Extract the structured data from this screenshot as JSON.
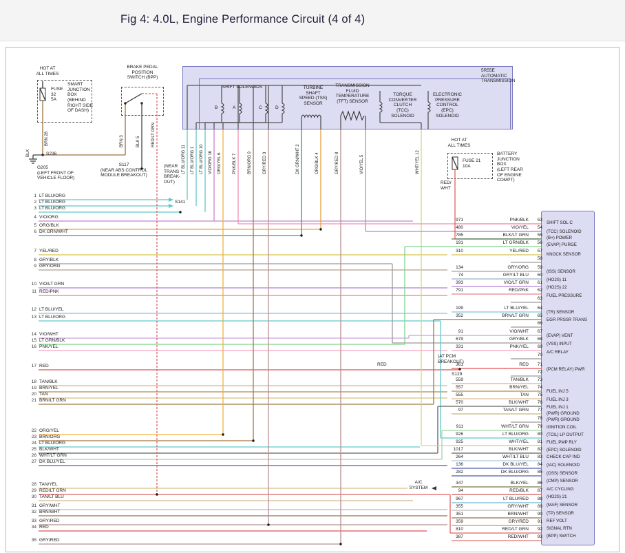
{
  "header": {
    "title": "Fig 4: 4.0L, Engine Performance Circuit (4 of 4)"
  },
  "labels": {
    "hot_left": "HOT AT\nALL TIMES",
    "fuse32": "FUSE\n32\n5A",
    "sjb": "SMART\nJUNCTION\nBOX\n(BEHIND\nRIGHT SIDE\nOF DASH)",
    "bpp": "BRAKE PEDAL\nPOSITION\nSWITCH (BPP)",
    "brn_feed": "BRN",
    "brn_feed_pin": "28",
    "blk_ground": "BLK",
    "s236": "S236",
    "g205": "G205\n(LEFT FRONT OF\nVEHICLE FLOOR)",
    "s117": "S117\n(NEAR ABS CONTROL\nMODULE BREAKOUT)",
    "near_trans": "(NEAR\nTRANS\nBREAK-\nOUT)",
    "s141": "S141",
    "shift_solenoids": "SHIFT SOLENOIDS",
    "tss": "TURBINE\nSHAFT\nSPEED (TSS)\nSENSOR",
    "tft": "TRANSMISSION\nFLUID\nTEMPERATURE\n(TFT) SENSOR",
    "tcc": "TORQUE\nCONVERTER\nCLUTCH\n(TCC)\nSOLENOID",
    "epc": "ELECTRONIC\nPRESSURE\nCONTROL\n(EPC)\nSOLENOID",
    "trans_title": "5R55E\nAUTOMATIC\nTRANSMISSION",
    "hot_right": "HOT AT\nALL TIMES",
    "fuse21": "FUSE 21\n10A",
    "bjb": "BATTERY\nJUNCTION\nBOX\n(LEFT REAR\nOF ENGINE\nCOMPT)",
    "red_wht": "RED/\nWHT",
    "at_pcm": "(AT PCM\nBREAKOUT)",
    "s129": "S129",
    "red_mid": "RED",
    "ac_system": "A/C\nSYSTEM"
  },
  "solenoid_letters": [
    "B",
    "A",
    "C",
    "D"
  ],
  "bpp_drops": [
    {
      "label": "BRN",
      "pin": "3",
      "hex": "#9a6f3a"
    },
    {
      "label": "BLK",
      "pin": "5",
      "hex": "#555555"
    },
    {
      "label": "RED/LT GRN",
      "pin": "",
      "hex": "#e06060"
    }
  ],
  "trans_drops": [
    {
      "label": "LT BLU/ORG",
      "pin": "11",
      "hex": "#5fc8c8"
    },
    {
      "label": "LT BLU/ORG",
      "pin": "1",
      "hex": "#5fc8c8"
    },
    {
      "label": "LT BLU/ORG",
      "pin": "10",
      "hex": "#5fc8c8"
    },
    {
      "label": "VIO/ORG",
      "pin": "16",
      "hex": "#c97fd4"
    },
    {
      "label": "ORG/YEL",
      "pin": "6",
      "hex": "#f0b040"
    },
    {
      "label": "PNK/BLK",
      "pin": "7",
      "hex": "#f08fb0"
    },
    {
      "label": "BRN/ORG",
      "pin": "9",
      "hex": "#a8763a"
    },
    {
      "label": "GRY/RED",
      "pin": "3",
      "hex": "#b89090"
    },
    {
      "label": "DK GRN/WHT",
      "pin": "2",
      "hex": "#3a9a5c"
    },
    {
      "label": "ORG/BLK",
      "pin": "4",
      "hex": "#e8a23c"
    },
    {
      "label": "GRY/RED",
      "pin": "8",
      "hex": "#b89090"
    },
    {
      "label": "VIO/YEL",
      "pin": "5",
      "hex": "#c080d8"
    },
    {
      "label": "WHT/YEL",
      "pin": "12",
      "hex": "#d8d090"
    }
  ],
  "left_rows": [
    {
      "n": "1",
      "label": "LT BLU/ORG",
      "hex": "#5fc8c8"
    },
    {
      "n": "2",
      "label": "LT BLU/ORG",
      "hex": "#5fc8c8"
    },
    {
      "n": "3",
      "label": "LT BLU/ORG",
      "hex": "#5fc8c8"
    },
    {
      "n": "4",
      "label": "VIO/ORG",
      "hex": "#c97fd4"
    },
    {
      "n": "5",
      "label": "ORG/BLK",
      "hex": "#e8a23c"
    },
    {
      "n": "6",
      "label": "DK GRN/WHT",
      "hex": "#3a9a5c"
    },
    {
      "n": "7",
      "label": "YEL/RED",
      "hex": "#d4c44a"
    },
    {
      "n": "8",
      "label": "GRY/BLK",
      "hex": "#9a9a9a"
    },
    {
      "n": "9",
      "label": "GRY/ORG",
      "hex": "#b0a090"
    },
    {
      "n": "10",
      "label": "VIO/LT GRN",
      "hex": "#b57fd4"
    },
    {
      "n": "11",
      "label": "RED/PNK",
      "hex": "#e8808f"
    },
    {
      "n": "12",
      "label": "LT BLU/YEL",
      "hex": "#7fc4e0"
    },
    {
      "n": "13",
      "label": "LT BLU/ORG",
      "hex": "#5fc8c8"
    },
    {
      "n": "14",
      "label": "VIO/WHT",
      "hex": "#c9a0e0"
    },
    {
      "n": "15",
      "label": "LT GRN/BLK",
      "hex": "#7fd48f"
    },
    {
      "n": "16",
      "label": "PNK/YEL",
      "hex": "#f2a0c0"
    },
    {
      "n": "17",
      "label": "RED",
      "hex": "#e05252"
    },
    {
      "n": "18",
      "label": "TAN/BLK",
      "hex": "#d4b483"
    },
    {
      "n": "19",
      "label": "BRN/YEL",
      "hex": "#b08a4f"
    },
    {
      "n": "20",
      "label": "TAN",
      "hex": "#d8bc8a"
    },
    {
      "n": "21",
      "label": "BRN/LT GRN",
      "hex": "#9a7a45"
    },
    {
      "n": "22",
      "label": "ORG/YEL",
      "hex": "#f0b040"
    },
    {
      "n": "23",
      "label": "BRN/ORG",
      "hex": "#a8763a"
    },
    {
      "n": "24",
      "label": "LT BLU/ORG",
      "hex": "#5fc8c8"
    },
    {
      "n": "25",
      "label": "BLK/WHT",
      "hex": "#606060"
    },
    {
      "n": "26",
      "label": "WHT/LT GRN",
      "hex": "#a0d4a8"
    },
    {
      "n": "27",
      "label": "DK BLU/YEL",
      "hex": "#4a5ab0"
    },
    {
      "n": "28",
      "label": "TAN/YEL",
      "hex": "#d8c080"
    },
    {
      "n": "29",
      "label": "RED/LT GRN",
      "hex": "#e06060"
    },
    {
      "n": "30",
      "label": "TAN/LT BLU",
      "hex": "#d0b890"
    },
    {
      "n": "31",
      "label": "GRY/WHT",
      "hex": "#b8b8b8"
    },
    {
      "n": "32",
      "label": "BRN/WHT",
      "hex": "#9a6f4a"
    },
    {
      "n": "33",
      "label": "GRY/RED",
      "hex": "#b89090"
    },
    {
      "n": "34",
      "label": "RED",
      "hex": "#e05252"
    },
    {
      "n": "35",
      "label": "GRY/RED",
      "hex": "#b89090"
    }
  ],
  "pcm_rows": [
    {
      "circuit": "971",
      "color": "PNK/BLK",
      "pin": "53",
      "hex": "#f08fb0"
    },
    {
      "circuit": "480",
      "color": "VIO/YEL",
      "pin": "54",
      "hex": "#c080d8"
    },
    {
      "circuit": "785",
      "color": "BLK/LT GRN",
      "pin": "55",
      "hex": "#557a55"
    },
    {
      "circuit": "191",
      "color": "LT GRN/BLK",
      "pin": "56",
      "hex": "#7fd48f"
    },
    {
      "circuit": "310",
      "color": "YEL/RED",
      "pin": "57",
      "hex": "#d4c44a"
    },
    {
      "circuit": "",
      "color": "",
      "pin": "58",
      "hex": ""
    },
    {
      "circuit": "134",
      "color": "GRY/ORG",
      "pin": "59",
      "hex": "#b0a090"
    },
    {
      "circuit": "74",
      "color": "GRY/LT BLU",
      "pin": "60",
      "hex": "#9ab0c8"
    },
    {
      "circuit": "393",
      "color": "VIO/LT GRN",
      "pin": "61",
      "hex": "#b57fd4"
    },
    {
      "circuit": "791",
      "color": "RED/PNK",
      "pin": "62",
      "hex": "#e8808f"
    },
    {
      "circuit": "",
      "color": "",
      "pin": "63",
      "hex": ""
    },
    {
      "circuit": "199",
      "color": "LT BLU/YEL",
      "pin": "64",
      "hex": "#7fc4e0"
    },
    {
      "circuit": "352",
      "color": "BRN/LT GRN",
      "pin": "65",
      "hex": "#9a7a45"
    },
    {
      "circuit": "",
      "color": "",
      "pin": "66",
      "hex": ""
    },
    {
      "circuit": "91",
      "color": "VIO/WHT",
      "pin": "67",
      "hex": "#c9a0e0"
    },
    {
      "circuit": "679",
      "color": "GRY/BLK",
      "pin": "68",
      "hex": "#9a9a9a"
    },
    {
      "circuit": "331",
      "color": "PNK/YEL",
      "pin": "69",
      "hex": "#f2a0c0"
    },
    {
      "circuit": "",
      "color": "",
      "pin": "70",
      "hex": ""
    },
    {
      "circuit": "361",
      "color": "RED",
      "pin": "71",
      "hex": "#e05252"
    },
    {
      "circuit": "",
      "color": "",
      "pin": "72",
      "hex": ""
    },
    {
      "circuit": "559",
      "color": "TAN/BLK",
      "pin": "73",
      "hex": "#d4b483"
    },
    {
      "circuit": "557",
      "color": "BRN/YEL",
      "pin": "74",
      "hex": "#b08a4f"
    },
    {
      "circuit": "555",
      "color": "TAN",
      "pin": "75",
      "hex": "#d8bc8a"
    },
    {
      "circuit": "570",
      "color": "BLK/WHT",
      "pin": "76",
      "hex": "#606060"
    },
    {
      "circuit": "97",
      "color": "TAN/LT GRN",
      "pin": "77",
      "hex": "#c8b87a"
    },
    {
      "circuit": "",
      "color": "",
      "pin": "78",
      "hex": ""
    },
    {
      "circuit": "911",
      "color": "WHT/LT GRN",
      "pin": "79",
      "hex": "#a0d4a8"
    },
    {
      "circuit": "926",
      "color": "LT BLU/ORG",
      "pin": "80",
      "hex": "#5fc8c8"
    },
    {
      "circuit": "925",
      "color": "WHT/YEL",
      "pin": "81",
      "hex": "#d8d090"
    },
    {
      "circuit": "1017",
      "color": "BLK/WHT",
      "pin": "82",
      "hex": "#606060"
    },
    {
      "circuit": "264",
      "color": "WHT/LT BLU",
      "pin": "83",
      "hex": "#a8c8e0"
    },
    {
      "circuit": "136",
      "color": "DK BLU/YEL",
      "pin": "84",
      "hex": "#4a5ab0"
    },
    {
      "circuit": "282",
      "color": "DK BLU/ORG",
      "pin": "85",
      "hex": "#4a5aa8"
    },
    {
      "circuit": "347",
      "color": "BLK/YEL",
      "pin": "86",
      "hex": "#787840"
    },
    {
      "circuit": "94",
      "color": "RED/BLK",
      "pin": "87",
      "hex": "#d05050"
    },
    {
      "circuit": "967",
      "color": "LT BLU/RED",
      "pin": "88",
      "hex": "#70b8d8"
    },
    {
      "circuit": "355",
      "color": "GRY/WHT",
      "pin": "89",
      "hex": "#b8b8b8"
    },
    {
      "circuit": "351",
      "color": "BRN/WHT",
      "pin": "90",
      "hex": "#9a6f4a"
    },
    {
      "circuit": "359",
      "color": "GRY/RED",
      "pin": "91",
      "hex": "#b89090"
    },
    {
      "circuit": "810",
      "color": "RED/LT GRN",
      "pin": "92",
      "hex": "#e06060"
    },
    {
      "circuit": "387",
      "color": "RED/WHT",
      "pin": "93",
      "hex": "#e07070"
    }
  ],
  "pcm_labels": [
    "SHIFT SOL C",
    "(TCC) SOLENOID",
    "(B+) POWER",
    "(EVAP) PURGE",
    "KNOCK SENSOR",
    "(ISS) SENSOR",
    "(HO2S) 11",
    "(HO2S) 22",
    "FUEL PRESSURE",
    "(TR) SENSOR",
    "EGR PRSSR TRANS",
    "(EVAP) VENT",
    "(VSS) INPUT",
    "A/C RELAY",
    "(PCM RELAY) PWR",
    "FUEL INJ 5",
    "FUEL INJ 3",
    "FUEL INJ 1",
    "(PWR) GROUND",
    "(PWR) GROUND",
    "IGNITION COIL",
    "(TCIL) LP OUTPUT",
    "FUEL PMP RLY",
    "(EPC) SOLENOID",
    "CHECK CAP IND",
    "(IAC) SOLENOID",
    "(OSS) SENSOR",
    "(CMP) SENSOR",
    "A/C CYCLING",
    "(HO2S) 21",
    "(MAF) SENSOR",
    "(TP) SENSOR",
    "REF VOLT",
    "SIGNAL RTN",
    "(BPP) SWITCH"
  ]
}
